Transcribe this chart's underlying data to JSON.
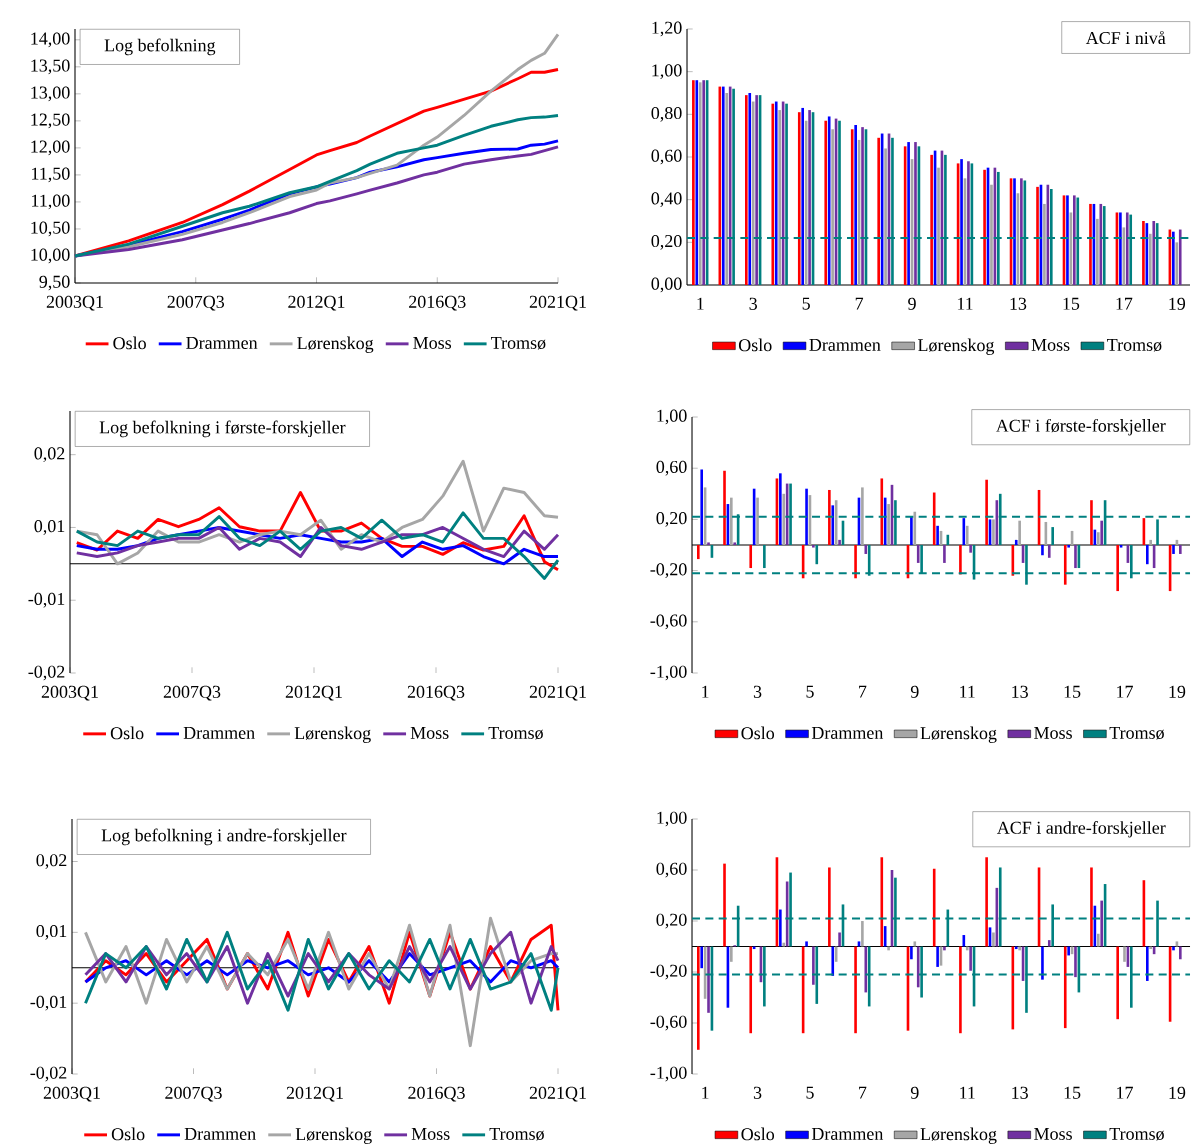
{
  "chart_data": [
    {
      "type": "line",
      "title": "Log befolkning",
      "legend": "bottom",
      "x": [
        "2003-01",
        "2005-01",
        "2007-01",
        "2008-07",
        "2009-07",
        "2011-01",
        "2012-01",
        "2012-07",
        "2013-07",
        "2014-01",
        "2015-01",
        "2016-01",
        "2016-07",
        "2017-07",
        "2018-07",
        "2019-07",
        "2020-01",
        "2020-07",
        "2021-01"
      ],
      "xlim": [
        "2003-01",
        "2021-01"
      ],
      "xticks": [
        {
          "value": "2003-01",
          "label": "2003Q1"
        },
        {
          "value": "2007-07",
          "label": "2007Q3"
        },
        {
          "value": "2012-01",
          "label": "2012Q1"
        },
        {
          "value": "2016-07",
          "label": "2016Q3"
        },
        {
          "value": "2021-01",
          "label": "2021Q1"
        }
      ],
      "ylim": [
        9.5,
        14.2
      ],
      "yticks": [
        {
          "value": 9.5,
          "label": "9,50"
        },
        {
          "value": 10,
          "label": "10,00"
        },
        {
          "value": 10.5,
          "label": "10,50"
        },
        {
          "value": 11,
          "label": "11,00"
        },
        {
          "value": 11.5,
          "label": "11,50"
        },
        {
          "value": 12,
          "label": "12,00"
        },
        {
          "value": 12.5,
          "label": "12,50"
        },
        {
          "value": 13,
          "label": "13,00"
        },
        {
          "value": 13.5,
          "label": "13,50"
        },
        {
          "value": 14,
          "label": "14,00"
        }
      ],
      "series": [
        {
          "name": "Oslo",
          "color": "#ff0000",
          "values": [
            10.0,
            10.28,
            10.62,
            10.95,
            11.2,
            11.6,
            11.87,
            11.95,
            12.1,
            12.22,
            12.45,
            12.68,
            12.75,
            12.9,
            13.05,
            13.28,
            13.4,
            13.4,
            13.45
          ]
        },
        {
          "name": "Drammen",
          "color": "#0000ff",
          "values": [
            10.0,
            10.2,
            10.45,
            10.68,
            10.85,
            11.15,
            11.28,
            11.33,
            11.45,
            11.55,
            11.65,
            11.78,
            11.82,
            11.9,
            11.97,
            11.98,
            12.05,
            12.07,
            12.13
          ]
        },
        {
          "name": "Lørenskog",
          "color": "#a6a6a6",
          "values": [
            10.0,
            10.17,
            10.4,
            10.62,
            10.8,
            11.1,
            11.22,
            11.35,
            11.45,
            11.53,
            11.68,
            12.05,
            12.2,
            12.6,
            13.05,
            13.45,
            13.62,
            13.75,
            14.1
          ]
        },
        {
          "name": "Moss",
          "color": "#7030a0",
          "values": [
            10.0,
            10.12,
            10.3,
            10.48,
            10.6,
            10.8,
            10.97,
            11.02,
            11.15,
            11.22,
            11.35,
            11.5,
            11.55,
            11.7,
            11.78,
            11.85,
            11.88,
            11.95,
            12.02
          ]
        },
        {
          "name": "Tromsø",
          "color": "#008080",
          "values": [
            10.0,
            10.22,
            10.55,
            10.8,
            10.92,
            11.17,
            11.28,
            11.38,
            11.58,
            11.7,
            11.9,
            12.0,
            12.05,
            12.23,
            12.4,
            12.52,
            12.56,
            12.57,
            12.6
          ]
        }
      ]
    },
    {
      "type": "bar",
      "title": "ACF i nivå",
      "legend": "bottom",
      "categories": [
        "1",
        null,
        "3",
        null,
        "5",
        null,
        "7",
        null,
        "9",
        null,
        "11",
        null,
        "13",
        null,
        "15",
        null,
        "17",
        null,
        "19"
      ],
      "ylim": [
        0,
        1.2
      ],
      "yticks": [
        {
          "value": 0,
          "label": "0,00"
        },
        {
          "value": 0.2,
          "label": "0,20"
        },
        {
          "value": 0.4,
          "label": "0,40"
        },
        {
          "value": 0.6,
          "label": "0,60"
        },
        {
          "value": 0.8,
          "label": "0,80"
        },
        {
          "value": 1,
          "label": "1,00"
        },
        {
          "value": 1.2,
          "label": "1,20"
        }
      ],
      "ref_lines": [
        {
          "axis": "y",
          "value": 0.22,
          "color": "#008080",
          "line_style": "dashed"
        }
      ],
      "series": [
        {
          "name": "Oslo",
          "color": "#ff0000",
          "values": [
            0.96,
            0.93,
            0.89,
            0.85,
            0.81,
            0.77,
            0.73,
            0.69,
            0.65,
            0.61,
            0.57,
            0.54,
            0.5,
            0.46,
            0.42,
            0.38,
            0.34,
            0.3,
            0.26
          ]
        },
        {
          "name": "Drammen",
          "color": "#0000ff",
          "values": [
            0.96,
            0.93,
            0.9,
            0.86,
            0.83,
            0.79,
            0.75,
            0.71,
            0.67,
            0.63,
            0.59,
            0.55,
            0.5,
            0.47,
            0.42,
            0.38,
            0.34,
            0.29,
            0.25
          ]
        },
        {
          "name": "Lørenskog",
          "color": "#a6a6a6",
          "values": [
            0.95,
            0.9,
            0.86,
            0.82,
            0.77,
            0.73,
            0.68,
            0.64,
            0.59,
            0.55,
            0.5,
            0.47,
            0.43,
            0.38,
            0.34,
            0.31,
            0.27,
            0.24,
            0.2
          ]
        },
        {
          "name": "Moss",
          "color": "#7030a0",
          "values": [
            0.96,
            0.93,
            0.89,
            0.86,
            0.82,
            0.78,
            0.74,
            0.71,
            0.67,
            0.63,
            0.58,
            0.55,
            0.5,
            0.47,
            0.42,
            0.38,
            0.34,
            0.3,
            0.26
          ]
        },
        {
          "name": "Tromsø",
          "color": "#008080",
          "values": [
            0.96,
            0.92,
            0.89,
            0.85,
            0.81,
            0.77,
            0.73,
            0.69,
            0.65,
            0.61,
            0.57,
            0.53,
            0.49,
            0.45,
            0.41,
            0.37,
            0.33,
            0.29,
            null
          ]
        }
      ]
    },
    {
      "type": "line",
      "title": "Log befolkning i første-forskjeller",
      "legend": "bottom",
      "x": [
        "2003-04",
        "2004-01",
        "2004-10",
        "2005-07",
        "2006-04",
        "2007-01",
        "2007-10",
        "2008-07",
        "2009-04",
        "2010-01",
        "2010-10",
        "2011-07",
        "2012-04",
        "2013-01",
        "2013-10",
        "2014-07",
        "2015-04",
        "2016-01",
        "2016-10",
        "2017-07",
        "2018-04",
        "2019-01",
        "2019-10",
        "2020-07",
        "2021-01"
      ],
      "xlim": [
        "2003-01",
        "2021-01"
      ],
      "xticks": [
        {
          "value": "2003-01",
          "label": "2003Q1"
        },
        {
          "value": "2007-07",
          "label": "2007Q3"
        },
        {
          "value": "2012-01",
          "label": "2012Q1"
        },
        {
          "value": "2016-07",
          "label": "2016Q3"
        },
        {
          "value": "2021-01",
          "label": "2021Q1"
        }
      ],
      "ylim": [
        -0.015,
        0.021
      ],
      "yticks": [
        {
          "value": -0.015,
          "label": "-0,02"
        },
        {
          "value": -0.005,
          "label": "-0,01"
        },
        {
          "value": 0.005,
          "label": "0,01"
        },
        {
          "value": 0.015,
          "label": "0,02"
        }
      ],
      "series": [
        {
          "name": "Oslo",
          "color": "#ff0000",
          "values": [
            0.0029,
            0.0019,
            0.0045,
            0.0035,
            0.0061,
            0.0051,
            0.0061,
            0.0077,
            0.0051,
            0.0045,
            0.0045,
            0.0098,
            0.0045,
            0.0045,
            0.0056,
            0.0035,
            0.0024,
            0.0024,
            0.0013,
            0.0029,
            0.0019,
            0.0024,
            0.0066,
            0.0003,
            -0.0008
          ]
        },
        {
          "name": "Drammen",
          "color": "#0000ff",
          "values": [
            0.0025,
            0.002,
            0.002,
            0.0025,
            0.0035,
            0.004,
            0.0045,
            0.005,
            0.0045,
            0.004,
            0.0035,
            0.004,
            0.0035,
            0.003,
            0.003,
            0.0035,
            0.001,
            0.003,
            0.002,
            0.0025,
            0.001,
            0.0,
            0.002,
            0.001,
            0.001
          ]
        },
        {
          "name": "Lørenskog",
          "color": "#a6a6a6",
          "values": [
            0.0045,
            0.004,
            0.0,
            0.0015,
            0.0045,
            0.003,
            0.003,
            0.004,
            0.003,
            0.004,
            0.0045,
            0.004,
            0.006,
            0.002,
            0.004,
            0.003,
            0.005,
            0.0061,
            0.0093,
            0.0141,
            0.0045,
            0.0104,
            0.0098,
            0.0066,
            0.0064
          ]
        },
        {
          "name": "Moss",
          "color": "#7030a0",
          "values": [
            0.0015,
            0.001,
            0.0015,
            0.0025,
            0.003,
            0.0035,
            0.0035,
            0.005,
            0.002,
            0.0035,
            0.003,
            0.001,
            0.005,
            0.0025,
            0.002,
            0.003,
            0.004,
            0.004,
            0.005,
            0.0035,
            0.002,
            0.001,
            0.0045,
            0.002,
            0.004
          ]
        },
        {
          "name": "Tromsø",
          "color": "#008080",
          "values": [
            0.0045,
            0.003,
            0.0025,
            0.0045,
            0.0035,
            0.004,
            0.004,
            0.0065,
            0.0035,
            0.0025,
            0.0045,
            0.002,
            0.0045,
            0.005,
            0.0035,
            0.006,
            0.0035,
            0.004,
            0.003,
            0.007,
            0.0035,
            0.0035,
            0.001,
            -0.002,
            0.0005
          ]
        }
      ]
    },
    {
      "type": "bar",
      "title": "ACF i første-forskjeller",
      "legend": "bottom",
      "categories": [
        "1",
        null,
        "3",
        null,
        "5",
        null,
        "7",
        null,
        "9",
        null,
        "11",
        null,
        "13",
        null,
        "15",
        null,
        "17",
        null,
        "19"
      ],
      "ylim": [
        -1,
        1
      ],
      "yticks": [
        {
          "value": -1,
          "label": "-1,00"
        },
        {
          "value": -0.6,
          "label": "-0,60"
        },
        {
          "value": -0.2,
          "label": "-0,20"
        },
        {
          "value": 0.2,
          "label": "0,20"
        },
        {
          "value": 0.6,
          "label": "0,60"
        },
        {
          "value": 1,
          "label": "1,00"
        }
      ],
      "ref_lines": [
        {
          "axis": "y",
          "value": 0.22,
          "color": "#008080",
          "line_style": "dashed"
        },
        {
          "axis": "y",
          "value": -0.22,
          "color": "#008080",
          "line_style": "dashed"
        }
      ],
      "series": [
        {
          "name": "Oslo",
          "color": "#ff0000",
          "values": [
            -0.11,
            0.58,
            -0.18,
            0.52,
            -0.26,
            0.43,
            -0.26,
            0.52,
            -0.26,
            0.41,
            -0.23,
            0.51,
            -0.24,
            0.43,
            -0.31,
            0.35,
            -0.36,
            0.21,
            -0.36
          ]
        },
        {
          "name": "Drammen",
          "color": "#0000ff",
          "values": [
            0.59,
            0.32,
            0.44,
            0.56,
            0.44,
            0.31,
            0.37,
            0.37,
            0.22,
            0.15,
            0.21,
            0.2,
            0.04,
            -0.08,
            -0.02,
            0.12,
            -0.02,
            -0.15,
            -0.07
          ]
        },
        {
          "name": "Lørenskog",
          "color": "#a6a6a6",
          "values": [
            0.45,
            0.37,
            0.37,
            0.4,
            0.39,
            0.35,
            0.45,
            0.32,
            0.26,
            0.11,
            0.15,
            0.2,
            0.19,
            0.18,
            0.11,
            0.1,
            0.0,
            0.04,
            0.04
          ]
        },
        {
          "name": "Moss",
          "color": "#7030a0",
          "values": [
            0.02,
            0.02,
            0.0,
            0.48,
            -0.02,
            0.04,
            -0.07,
            0.47,
            -0.14,
            -0.14,
            -0.06,
            0.35,
            -0.14,
            -0.1,
            -0.18,
            0.19,
            -0.14,
            -0.18,
            -0.07
          ]
        },
        {
          "name": "Tromsø",
          "color": "#008080",
          "values": [
            -0.1,
            0.24,
            -0.18,
            0.48,
            -0.15,
            0.19,
            -0.24,
            0.35,
            -0.22,
            0.08,
            -0.27,
            0.4,
            -0.31,
            0.14,
            -0.18,
            0.35,
            -0.26,
            0.2,
            null
          ]
        }
      ]
    },
    {
      "type": "line",
      "title": "Log befolkning i andre-forskjeller",
      "legend": "bottom",
      "x": [
        "2003-07",
        "2004-04",
        "2005-01",
        "2005-10",
        "2006-07",
        "2007-04",
        "2008-01",
        "2008-10",
        "2009-07",
        "2010-04",
        "2011-01",
        "2011-10",
        "2012-07",
        "2013-04",
        "2014-01",
        "2014-10",
        "2015-07",
        "2016-04",
        "2017-01",
        "2017-10",
        "2018-07",
        "2019-04",
        "2020-01",
        "2020-10",
        "2021-01"
      ],
      "xlim": [
        "2003-01",
        "2021-01"
      ],
      "xticks": [
        {
          "value": "2003-01",
          "label": "2003Q1"
        },
        {
          "value": "2007-07",
          "label": "2007Q3"
        },
        {
          "value": "2012-01",
          "label": "2012Q1"
        },
        {
          "value": "2016-07",
          "label": "2016Q3"
        },
        {
          "value": "2021-01",
          "label": "2021Q1"
        }
      ],
      "ylim": [
        -0.015,
        0.021
      ],
      "yticks": [
        {
          "value": -0.015,
          "label": "-0,02"
        },
        {
          "value": -0.005,
          "label": "-0,01"
        },
        {
          "value": 0.005,
          "label": "0,01"
        },
        {
          "value": 0.015,
          "label": "0,02"
        }
      ],
      "series": [
        {
          "name": "Oslo",
          "color": "#ff0000",
          "values": [
            -0.002,
            0.001,
            -0.001,
            0.002,
            -0.002,
            0.001,
            0.004,
            -0.003,
            0.002,
            -0.003,
            0.005,
            -0.004,
            0.004,
            -0.002,
            0.003,
            -0.005,
            0.005,
            -0.004,
            0.005,
            -0.003,
            0.003,
            -0.002,
            0.004,
            0.006,
            -0.006
          ]
        },
        {
          "name": "Drammen",
          "color": "#0000ff",
          "values": [
            -0.002,
            0.0,
            0.001,
            -0.001,
            0.001,
            -0.001,
            0.001,
            -0.001,
            0.001,
            0.0,
            0.001,
            -0.001,
            0.0,
            -0.002,
            0.001,
            -0.002,
            0.002,
            -0.001,
            0.0,
            0.001,
            -0.002,
            0.001,
            0.0,
            0.001,
            0.0
          ]
        },
        {
          "name": "Lørenskog",
          "color": "#a6a6a6",
          "values": [
            0.005,
            -0.002,
            0.003,
            -0.005,
            0.004,
            -0.002,
            0.003,
            -0.003,
            0.002,
            -0.001,
            0.004,
            -0.003,
            0.005,
            -0.003,
            0.002,
            -0.003,
            0.006,
            -0.004,
            0.006,
            -0.011,
            0.007,
            -0.002,
            0.001,
            0.002,
            0.002
          ]
        },
        {
          "name": "Moss",
          "color": "#7030a0",
          "values": [
            -0.001,
            0.002,
            -0.002,
            0.003,
            -0.001,
            0.002,
            -0.002,
            0.003,
            -0.005,
            0.002,
            -0.004,
            0.002,
            -0.002,
            0.002,
            -0.001,
            -0.003,
            0.003,
            -0.002,
            0.003,
            -0.003,
            0.002,
            0.005,
            -0.005,
            0.003,
            0.001
          ]
        },
        {
          "name": "Tromsø",
          "color": "#008080",
          "values": [
            -0.005,
            0.002,
            0.0,
            0.003,
            -0.003,
            0.004,
            -0.002,
            0.005,
            -0.003,
            0.001,
            -0.006,
            0.004,
            -0.003,
            0.002,
            -0.003,
            0.001,
            -0.002,
            0.004,
            -0.003,
            0.004,
            -0.003,
            -0.002,
            0.002,
            -0.006,
            0.0
          ]
        }
      ]
    },
    {
      "type": "bar",
      "title": "ACF i andre-forskjeller",
      "legend": "bottom",
      "categories": [
        "1",
        null,
        "3",
        null,
        "5",
        null,
        "7",
        null,
        "9",
        null,
        "11",
        null,
        "13",
        null,
        "15",
        null,
        "17",
        null,
        "19"
      ],
      "ylim": [
        -1,
        1
      ],
      "yticks": [
        {
          "value": -1,
          "label": "-1,00"
        },
        {
          "value": -0.6,
          "label": "-0,60"
        },
        {
          "value": -0.2,
          "label": "-0,20"
        },
        {
          "value": 0.2,
          "label": "0,20"
        },
        {
          "value": 0.6,
          "label": "0,60"
        },
        {
          "value": 1,
          "label": "1,00"
        }
      ],
      "ref_lines": [
        {
          "axis": "y",
          "value": 0.22,
          "color": "#008080",
          "line_style": "dashed"
        },
        {
          "axis": "y",
          "value": -0.22,
          "color": "#008080",
          "line_style": "dashed"
        }
      ],
      "series": [
        {
          "name": "Oslo",
          "color": "#ff0000",
          "values": [
            -0.81,
            0.65,
            -0.68,
            0.7,
            -0.68,
            0.62,
            -0.68,
            0.7,
            -0.66,
            0.61,
            -0.68,
            0.7,
            -0.65,
            0.62,
            -0.64,
            0.62,
            -0.57,
            0.52,
            -0.59
          ]
        },
        {
          "name": "Drammen",
          "color": "#0000ff",
          "values": [
            -0.17,
            -0.48,
            -0.02,
            0.29,
            0.04,
            -0.23,
            0.04,
            0.16,
            -0.1,
            -0.16,
            0.09,
            0.15,
            -0.02,
            -0.26,
            -0.07,
            0.32,
            0.0,
            -0.27,
            -0.03
          ]
        },
        {
          "name": "Lørenskog",
          "color": "#a6a6a6",
          "values": [
            -0.41,
            -0.12,
            0.0,
            0.03,
            null,
            -0.12,
            0.2,
            -0.03,
            0.04,
            -0.15,
            -0.03,
            0.11,
            -0.03,
            0.0,
            -0.06,
            0.1,
            -0.12,
            -0.02,
            0.04
          ]
        },
        {
          "name": "Moss",
          "color": "#7030a0",
          "values": [
            -0.52,
            0.01,
            -0.28,
            0.51,
            -0.3,
            0.11,
            -0.36,
            0.6,
            -0.32,
            -0.03,
            -0.19,
            0.46,
            -0.27,
            0.05,
            -0.24,
            0.36,
            -0.16,
            -0.06,
            -0.1
          ]
        },
        {
          "name": "Tromsø",
          "color": "#008080",
          "values": [
            -0.66,
            0.32,
            -0.47,
            0.58,
            -0.45,
            0.33,
            -0.47,
            0.54,
            -0.4,
            0.29,
            -0.47,
            0.62,
            -0.52,
            0.33,
            -0.36,
            0.49,
            -0.48,
            0.36,
            null
          ]
        }
      ]
    }
  ]
}
